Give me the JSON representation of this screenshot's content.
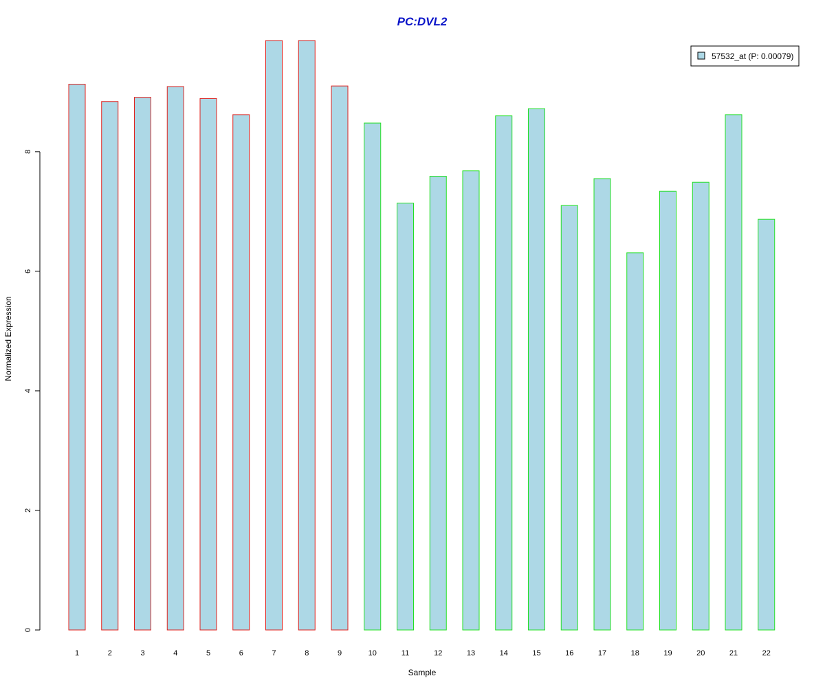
{
  "chart_data": {
    "type": "bar",
    "title": "PC:DVL2",
    "xlabel": "Sample",
    "ylabel": "Normalized Expression",
    "categories": [
      "1",
      "2",
      "3",
      "4",
      "5",
      "6",
      "7",
      "8",
      "9",
      "10",
      "11",
      "12",
      "13",
      "14",
      "15",
      "16",
      "17",
      "18",
      "19",
      "20",
      "21",
      "22"
    ],
    "series": [
      {
        "name": "57532_at (P: 0.00079)",
        "values": [
          9.13,
          8.84,
          8.91,
          9.09,
          8.89,
          8.62,
          9.86,
          9.86,
          9.1,
          8.48,
          7.14,
          7.59,
          7.68,
          8.6,
          8.72,
          7.1,
          7.55,
          6.31,
          7.34,
          7.49,
          8.62,
          6.87
        ]
      }
    ],
    "groups": [
      {
        "samples": [
          "1",
          "2",
          "3",
          "4",
          "5",
          "6",
          "7",
          "8",
          "9"
        ],
        "border_color": "#e0201c"
      },
      {
        "samples": [
          "10",
          "11",
          "12",
          "13",
          "14",
          "15",
          "16",
          "17",
          "18",
          "19",
          "20",
          "21",
          "22"
        ],
        "border_color": "#22e022"
      }
    ],
    "bar_fill": "#add8e6",
    "title_color": "#0a14c8",
    "yticks": [
      0,
      2,
      4,
      6,
      8
    ],
    "ylim": [
      0,
      9.86
    ],
    "grid": false,
    "legend_position": "top-right"
  }
}
